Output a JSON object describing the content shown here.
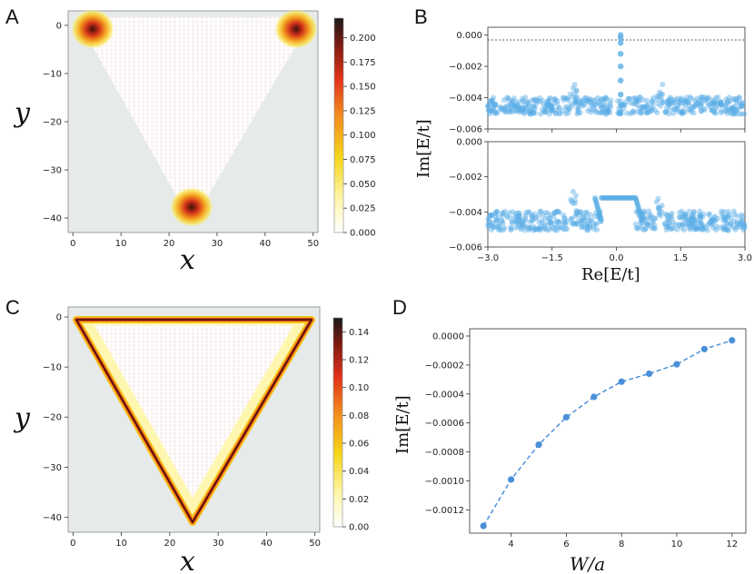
{
  "panel_letters": [
    "A",
    "B",
    "C",
    "D"
  ],
  "colors": {
    "panel_bg": "#e6eaea",
    "triangle_fill": "#ffffff",
    "scatter_blue": "#5aaee6",
    "line_blue": "#4a90d9",
    "heat_low": "#ffffe0",
    "heat_mid": "#f5d61a",
    "heat_high": "#e84a1b",
    "heat_max": "#1a1a1a"
  },
  "chart_data": [
    {
      "id": "A",
      "type": "heatmap",
      "title": "",
      "xlabel": "x",
      "ylabel": "y",
      "xlim": [
        -1,
        51
      ],
      "ylim": [
        -43,
        3
      ],
      "xticks": [
        "0",
        "10",
        "20",
        "30",
        "40",
        "50"
      ],
      "yticks": [
        "0",
        "−10",
        "−20",
        "−30",
        "−40"
      ],
      "colorbar": {
        "min": 0.0,
        "max": 0.22,
        "ticks": [
          "0.000",
          "0.025",
          "0.050",
          "0.075",
          "0.100",
          "0.125",
          "0.150",
          "0.175",
          "0.200"
        ]
      },
      "description": "corner-localized modes",
      "hotspots": [
        {
          "x": 3,
          "y": -1,
          "v": 0.22
        },
        {
          "x": 47,
          "y": -1,
          "v": 0.22
        },
        {
          "x": 25,
          "y": -40,
          "v": 0.22
        }
      ]
    },
    {
      "id": "B",
      "type": "scatter",
      "xlabel": "Re[E/t]",
      "ylabel": "Im[E/t]",
      "subplots": [
        {
          "xlim": [
            -3.0,
            3.0
          ],
          "ylim": [
            -0.006,
            0.0005
          ],
          "yticks": [
            "0.000",
            "−0.002",
            "−0.004",
            "−0.006"
          ],
          "reference_line_y": 0.0,
          "central_points": [
            [
              0.1,
              0.0
            ],
            [
              0.1,
              -0.0002
            ],
            [
              0.1,
              -0.0005
            ],
            [
              0.1,
              -0.0012
            ],
            [
              0.1,
              -0.002
            ],
            [
              0.1,
              -0.0029
            ],
            [
              0.1,
              -0.0038
            ],
            [
              0.1,
              -0.0045
            ],
            [
              0.1,
              -0.005
            ]
          ],
          "band_level": -0.0045
        },
        {
          "xlim": [
            -3.0,
            3.0
          ],
          "ylim": [
            -0.006,
            0.0
          ],
          "yticks": [
            "0.000",
            "−0.002",
            "−0.004",
            "−0.006"
          ],
          "xticks": [
            "−3.0",
            "−1.5",
            "0.0",
            "1.5",
            "3.0"
          ],
          "plateau": {
            "x_from": -0.35,
            "x_to": 0.45,
            "y": -0.0032
          },
          "band_level": -0.0045
        }
      ]
    },
    {
      "id": "C",
      "type": "heatmap",
      "xlabel": "x",
      "ylabel": "y",
      "xlim": [
        -1,
        51
      ],
      "ylim": [
        -43,
        2
      ],
      "xticks": [
        "0",
        "10",
        "20",
        "30",
        "40",
        "50"
      ],
      "yticks": [
        "0",
        "−10",
        "−20",
        "−30",
        "−40"
      ],
      "colorbar": {
        "min": 0.0,
        "max": 0.15,
        "ticks": [
          "0.00",
          "0.02",
          "0.04",
          "0.06",
          "0.08",
          "0.10",
          "0.12",
          "0.14"
        ]
      },
      "description": "edge-localized modes"
    },
    {
      "id": "D",
      "type": "line",
      "xlabel": "W/a",
      "ylabel": "Im[E/t]",
      "x": [
        3,
        4,
        5,
        6,
        7,
        8,
        9,
        10,
        11,
        12
      ],
      "values": [
        -0.00131,
        -0.00099,
        -0.00075,
        -0.00056,
        -0.00042,
        -0.000315,
        -0.00026,
        -0.000195,
        -9e-05,
        -3e-05
      ],
      "xlim": [
        2.5,
        12.5
      ],
      "ylim": [
        -0.00136,
        5e-05
      ],
      "xticks": [
        "4",
        "6",
        "8",
        "10",
        "12"
      ],
      "xtick_values": [
        4,
        6,
        8,
        10,
        12
      ],
      "yticks": [
        "0.0000",
        "−0.0002",
        "−0.0004",
        "−0.0006",
        "−0.0008",
        "−0.0010",
        "−0.0012"
      ],
      "ytick_values": [
        0,
        -0.0002,
        -0.0004,
        -0.0006,
        -0.0008,
        -0.001,
        -0.0012
      ]
    }
  ]
}
